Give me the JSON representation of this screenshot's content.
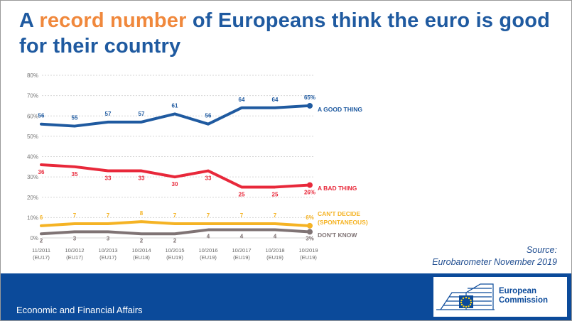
{
  "title": {
    "before": "A ",
    "highlight": "record number",
    "after": " of Europeans think the euro is good for their country"
  },
  "colors": {
    "good": "#1f5aa0",
    "bad": "#e8283a",
    "cant_decide": "#f5b324",
    "dont_know": "#7f7374",
    "highlight": "#f0883c",
    "footer": "#0b4a9a"
  },
  "source": {
    "line1": "Source:",
    "line2": "Eurobarometer November 2019"
  },
  "footer": {
    "label": "Economic and Financial Affairs",
    "logo_line1": "European",
    "logo_line2": "Commission"
  },
  "chart_data": {
    "type": "line",
    "title": "",
    "ylim": [
      0,
      80
    ],
    "yticks": [
      "0%",
      "10%",
      "20%",
      "30%",
      "40%",
      "50%",
      "60%",
      "70%",
      "80%"
    ],
    "categories": [
      "11/2011",
      "10/2012",
      "10/2013",
      "10/2014",
      "10/2015",
      "10/2016",
      "10/2017",
      "10/2018",
      "10/2019"
    ],
    "sub_categories": [
      "(EU17)",
      "(EU17)",
      "(EU17)",
      "(EU18)",
      "(EU19)",
      "(EU19)",
      "(EU19)",
      "(EU19)",
      "(EU19)"
    ],
    "series": [
      {
        "name": "A GOOD THING",
        "key": "good",
        "values": [
          56,
          55,
          57,
          57,
          61,
          56,
          64,
          64,
          65
        ],
        "labels": [
          "56",
          "55",
          "57",
          "57",
          "61",
          "56",
          "64",
          "64",
          "65%"
        ]
      },
      {
        "name": "A BAD THING",
        "key": "bad",
        "values": [
          36,
          35,
          33,
          33,
          30,
          33,
          25,
          25,
          26
        ],
        "labels": [
          "36",
          "35",
          "33",
          "33",
          "30",
          "33",
          "25",
          "25",
          "26%"
        ]
      },
      {
        "name": "CAN'T DECIDE (SPONTANEOUS)",
        "key": "cant_decide",
        "values": [
          6,
          7,
          7,
          8,
          7,
          7,
          7,
          7,
          6
        ],
        "labels": [
          "6",
          "7",
          "7",
          "8",
          "7",
          "7",
          "7",
          "7",
          "6%"
        ]
      },
      {
        "name": "DON'T KNOW",
        "key": "dont_know",
        "values": [
          2,
          3,
          3,
          2,
          2,
          4,
          4,
          4,
          3
        ],
        "labels": [
          "2",
          "3",
          "3",
          "2",
          "2",
          "4",
          "4",
          "4",
          "3%"
        ]
      }
    ]
  }
}
